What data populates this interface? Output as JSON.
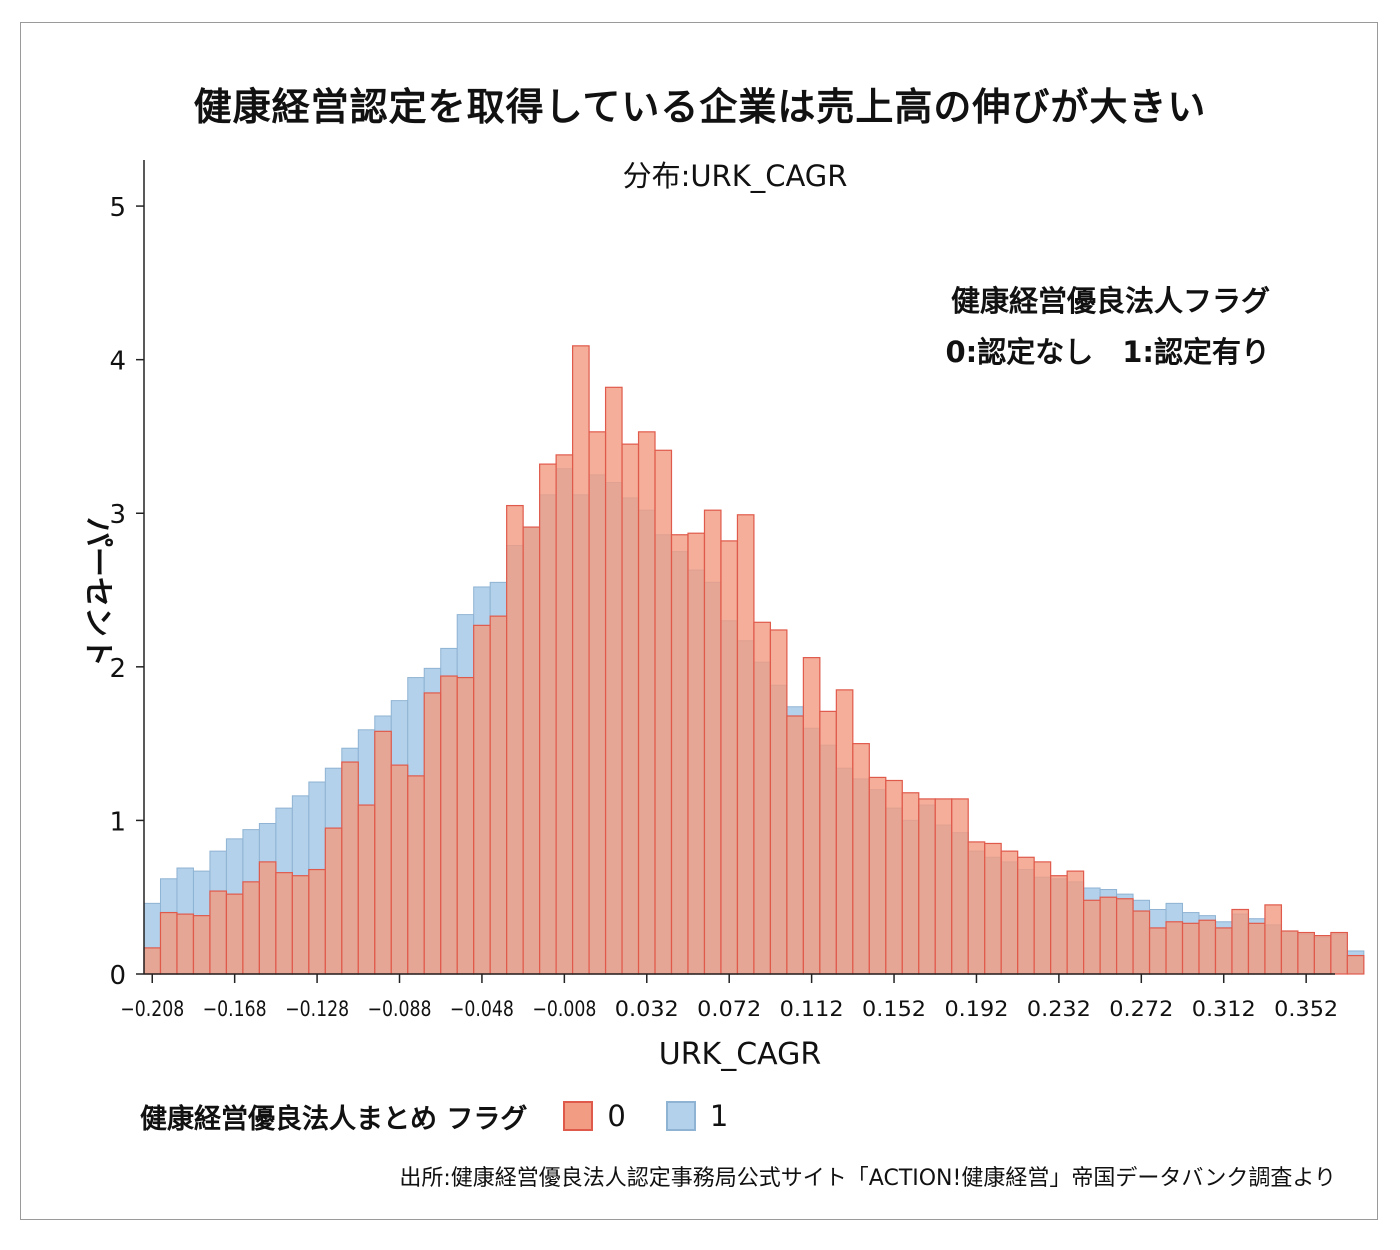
{
  "title": "健康経営認定を取得している企業は売上高の伸びが大きい",
  "source": "出所:健康経営優良法人認定事務局公式サイト「ACTION!健康経営」帝国データバンク調査より",
  "chart_data": {
    "type": "histogram",
    "subtitle": "分布:URK_CAGR",
    "xlabel": "URK_CAGR",
    "ylabel": "パーセント",
    "x_ticks": [
      "−0.208",
      "−0.168",
      "−0.128",
      "−0.088",
      "−0.048",
      "−0.008",
      "0.032",
      "0.072",
      "0.112",
      "0.152",
      "0.192",
      "0.232",
      "0.272",
      "0.312",
      "0.352"
    ],
    "x_tick_values": [
      -0.208,
      -0.168,
      -0.128,
      -0.088,
      -0.048,
      -0.008,
      0.032,
      0.072,
      0.112,
      0.152,
      0.192,
      0.232,
      0.272,
      0.312,
      0.352
    ],
    "y_ticks": [
      "0",
      "1",
      "2",
      "3",
      "4",
      "5"
    ],
    "xlim": [
      -0.212,
      0.366
    ],
    "ylim": [
      0,
      5.3
    ],
    "bin_start": -0.212,
    "bin_width": 0.008,
    "annotation": {
      "line1": "健康経営優良法人フラグ",
      "line2": "0:認定なし　1:認定有り"
    },
    "legend": {
      "title": "健康経営優良法人まとめ フラグ",
      "position": "bottom",
      "items": [
        "0",
        "1"
      ]
    },
    "colors": {
      "series0_fill": "#f19c83",
      "series0_edge": "#e05a4c",
      "series1_fill": "#b3d1ea",
      "series1_edge": "#8fb3d3",
      "overlap_fill": "#e8a285"
    },
    "series": [
      {
        "name": "0",
        "values": [
          0.17,
          0.4,
          0.39,
          0.38,
          0.54,
          0.52,
          0.6,
          0.73,
          0.66,
          0.64,
          0.68,
          0.95,
          1.38,
          1.1,
          1.58,
          1.36,
          1.29,
          1.83,
          1.94,
          1.93,
          2.27,
          2.33,
          3.05,
          2.91,
          3.32,
          3.38,
          4.09,
          3.53,
          3.82,
          3.45,
          3.53,
          3.41,
          2.86,
          2.87,
          3.02,
          2.82,
          2.99,
          2.29,
          2.24,
          1.68,
          2.06,
          1.71,
          1.85,
          1.5,
          1.28,
          1.26,
          1.18,
          1.14,
          1.14,
          1.14,
          0.86,
          0.85,
          0.8,
          0.76,
          0.73,
          0.64,
          0.67,
          0.48,
          0.5,
          0.49,
          0.41,
          0.3,
          0.34,
          0.33,
          0.35,
          0.3,
          0.42,
          0.33,
          0.45,
          0.28,
          0.27,
          0.25,
          0.27,
          0.12
        ]
      },
      {
        "name": "1",
        "values": [
          0.46,
          0.62,
          0.69,
          0.67,
          0.8,
          0.88,
          0.94,
          0.98,
          1.08,
          1.16,
          1.25,
          1.34,
          1.47,
          1.59,
          1.68,
          1.78,
          1.93,
          1.99,
          2.12,
          2.34,
          2.52,
          2.55,
          2.79,
          2.91,
          3.12,
          3.29,
          3.12,
          3.25,
          3.2,
          3.1,
          3.02,
          2.86,
          2.75,
          2.63,
          2.55,
          2.3,
          2.17,
          2.03,
          1.88,
          1.74,
          1.6,
          1.49,
          1.34,
          1.27,
          1.2,
          1.08,
          1.0,
          1.1,
          0.97,
          0.92,
          0.8,
          0.76,
          0.73,
          0.68,
          0.63,
          0.62,
          0.6,
          0.56,
          0.55,
          0.52,
          0.48,
          0.42,
          0.46,
          0.4,
          0.38,
          0.34,
          0.39,
          0.36,
          0.32,
          0.28,
          0.26,
          0.24,
          0.26,
          0.15
        ]
      }
    ]
  }
}
